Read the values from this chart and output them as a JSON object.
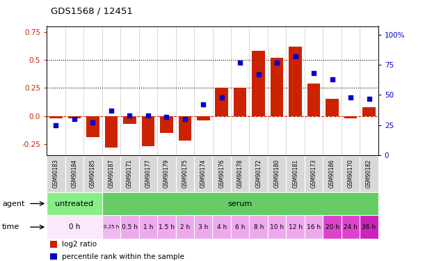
{
  "title": "GDS1568 / 12451",
  "samples": [
    "GSM90183",
    "GSM90184",
    "GSM90185",
    "GSM90187",
    "GSM90171",
    "GSM90177",
    "GSM90179",
    "GSM90175",
    "GSM90174",
    "GSM90176",
    "GSM90178",
    "GSM90172",
    "GSM90180",
    "GSM90181",
    "GSM90173",
    "GSM90186",
    "GSM90170",
    "GSM90182"
  ],
  "log2_ratio": [
    -0.02,
    -0.02,
    -0.19,
    -0.28,
    -0.07,
    -0.27,
    -0.15,
    -0.22,
    -0.04,
    0.25,
    0.25,
    0.58,
    0.52,
    0.62,
    0.29,
    0.15,
    -0.02,
    0.08
  ],
  "percentile_rank": [
    25,
    30,
    27,
    37,
    33,
    33,
    32,
    30,
    42,
    48,
    77,
    67,
    77,
    82,
    68,
    63,
    48,
    47
  ],
  "bar_color": "#cc2200",
  "dot_color": "#0000cc",
  "ylim_left": [
    -0.35,
    0.8
  ],
  "ylim_right": [
    0,
    107
  ],
  "yticks_left": [
    -0.25,
    0.0,
    0.25,
    0.5,
    0.75
  ],
  "yticks_right": [
    0,
    25,
    50,
    75,
    100
  ],
  "hlines": [
    0.5,
    0.25
  ],
  "agent_spans": [
    {
      "start": 0,
      "end": 3,
      "label": "untreated",
      "color": "#88ee88"
    },
    {
      "start": 3,
      "end": 18,
      "label": "serum",
      "color": "#66cc66"
    }
  ],
  "time_spans": [
    {
      "start": 0,
      "end": 3,
      "label": "0 h",
      "color": "#fce8fc"
    },
    {
      "start": 3,
      "end": 4,
      "label": "0.25 h",
      "color": "#f0b8f0"
    },
    {
      "start": 4,
      "end": 5,
      "label": "0.5 h",
      "color": "#eeaaee"
    },
    {
      "start": 5,
      "end": 6,
      "label": "1 h",
      "color": "#eeaaee"
    },
    {
      "start": 6,
      "end": 7,
      "label": "1.5 h",
      "color": "#eeaaee"
    },
    {
      "start": 7,
      "end": 8,
      "label": "2 h",
      "color": "#eeaaee"
    },
    {
      "start": 8,
      "end": 9,
      "label": "3 h",
      "color": "#eeaaee"
    },
    {
      "start": 9,
      "end": 10,
      "label": "4 h",
      "color": "#eeaaee"
    },
    {
      "start": 10,
      "end": 11,
      "label": "6 h",
      "color": "#eeaaee"
    },
    {
      "start": 11,
      "end": 12,
      "label": "8 h",
      "color": "#eeaaee"
    },
    {
      "start": 12,
      "end": 13,
      "label": "10 h",
      "color": "#eeaaee"
    },
    {
      "start": 13,
      "end": 14,
      "label": "12 h",
      "color": "#eeaaee"
    },
    {
      "start": 14,
      "end": 15,
      "label": "16 h",
      "color": "#eeaaee"
    },
    {
      "start": 15,
      "end": 16,
      "label": "20 h",
      "color": "#dd44cc"
    },
    {
      "start": 16,
      "end": 17,
      "label": "24 h",
      "color": "#dd44cc"
    },
    {
      "start": 17,
      "end": 18,
      "label": "36 h",
      "color": "#cc22bb"
    }
  ]
}
